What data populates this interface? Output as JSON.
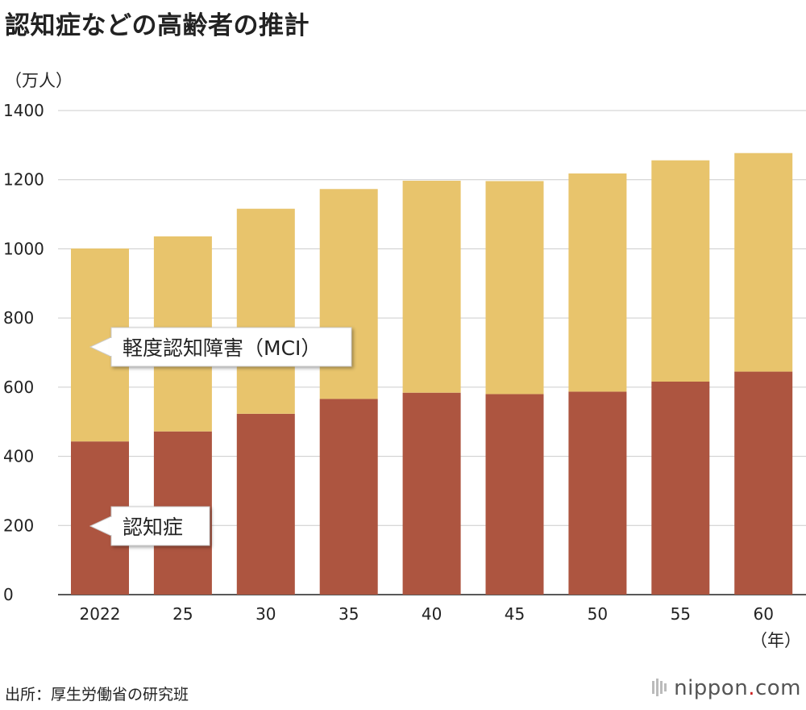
{
  "title": "認知症などの高齢者の推計",
  "unit_label": "（万人）",
  "x_unit_label": "（年）",
  "source": "出所：厚生労働省の研究班",
  "brand": {
    "name": "nippon",
    "dot": ".",
    "tld": "com"
  },
  "colors": {
    "dementia": "#ad5540",
    "mci": "#e8c46c",
    "grid": "#cccccc"
  },
  "chart_data": {
    "type": "bar",
    "stacked": true,
    "categories": [
      "2022",
      "25",
      "30",
      "35",
      "40",
      "45",
      "50",
      "55",
      "60"
    ],
    "series": [
      {
        "name": "認知症",
        "values": [
          443,
          472,
          523,
          566,
          584,
          580,
          587,
          616,
          645
        ]
      },
      {
        "name": "軽度認知障害（MCI）",
        "values": [
          558,
          564,
          593,
          607,
          613,
          616,
          631,
          640,
          632
        ]
      }
    ],
    "ylim": [
      0,
      1400
    ],
    "yticks": [
      0,
      200,
      400,
      600,
      800,
      1000,
      1200,
      1400
    ],
    "grid": true
  }
}
